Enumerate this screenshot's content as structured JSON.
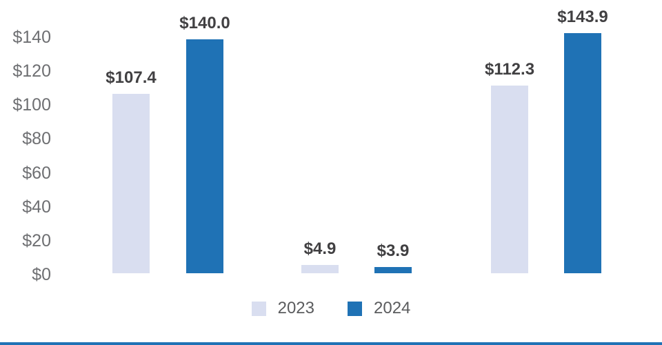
{
  "chart_data": {
    "type": "bar",
    "categories": [
      "",
      "",
      ""
    ],
    "series": [
      {
        "name": "2023",
        "color": "#D9DEF0",
        "values": [
          107.4,
          4.9,
          112.3
        ],
        "data_labels": [
          "$107.4",
          "$4.9",
          "$112.3"
        ]
      },
      {
        "name": "2024",
        "color": "#1F72B5",
        "values": [
          140.0,
          3.9,
          143.9
        ],
        "data_labels": [
          "$140.0",
          "$3.9",
          "$143.9"
        ]
      }
    ],
    "title": "",
    "xlabel": "",
    "ylabel": "",
    "y_ticks": [
      {
        "label": "$140",
        "value": 140
      },
      {
        "label": "$120",
        "value": 120
      },
      {
        "label": "$100",
        "value": 100
      },
      {
        "label": "$80",
        "value": 80
      },
      {
        "label": "$60",
        "value": 60
      },
      {
        "label": "$40",
        "value": 40
      },
      {
        "label": "$20",
        "value": 20
      },
      {
        "label": "$0",
        "value": 0
      }
    ],
    "ylim": [
      0,
      145
    ],
    "grid": false,
    "legend_position": "bottom"
  },
  "legend": {
    "items": [
      {
        "label": "2023",
        "color": "#D9DEF0"
      },
      {
        "label": "2024",
        "color": "#1F72B5"
      }
    ]
  },
  "colors": {
    "background": "#FFFFFF",
    "series_2023": "#D9DEF0",
    "series_2024": "#1F72B5",
    "axis_text": "#6E6F72",
    "data_label_text": "#414042",
    "legend_text": "#5B5C5E",
    "footer_rule": "#1F72B5"
  }
}
